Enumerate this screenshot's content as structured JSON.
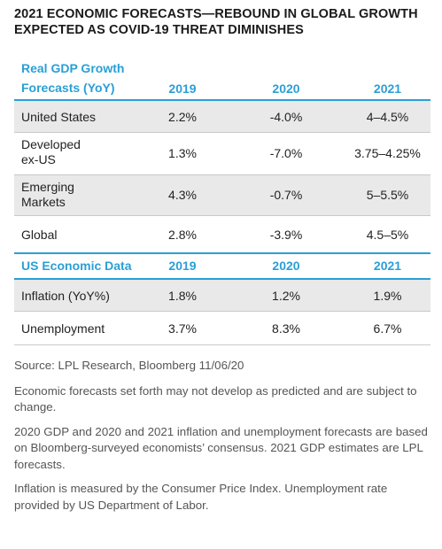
{
  "title": {
    "line1": "2021 ECONOMIC FORECASTS—REBOUND IN GLOBAL GROWTH",
    "line2": "EXPECTED AS COVID-19 THREAT DIMINISHES"
  },
  "gdp_section": {
    "header_line1": "Real GDP Growth",
    "header_line2": "Forecasts (YoY)",
    "years": [
      "2019",
      "2020",
      "2021"
    ],
    "rows": [
      {
        "label_line1": "United States",
        "label_line2": "",
        "values": [
          "2.2%",
          "-4.0%",
          "4–4.5%"
        ]
      },
      {
        "label_line1": "Developed",
        "label_line2": "ex-US",
        "values": [
          "1.3%",
          "-7.0%",
          "3.75–4.25%"
        ]
      },
      {
        "label_line1": "Emerging",
        "label_line2": "Markets",
        "values": [
          "4.3%",
          "-0.7%",
          "5–5.5%"
        ]
      },
      {
        "label_line1": "Global",
        "label_line2": "",
        "values": [
          "2.8%",
          "-3.9%",
          "4.5–5%"
        ]
      }
    ]
  },
  "us_section": {
    "header": "US Economic Data",
    "years": [
      "2019",
      "2020",
      "2021"
    ],
    "rows": [
      {
        "label": "Inflation (YoY%)",
        "values": [
          "1.8%",
          "1.2%",
          "1.9%"
        ]
      },
      {
        "label": "Unemployment",
        "values": [
          "3.7%",
          "8.3%",
          "6.7%"
        ]
      }
    ]
  },
  "notes": {
    "source": "Source: LPL Research, Bloomberg   11/06/20",
    "note1": "Economic forecasts set forth may not develop as predicted and are subject to change.",
    "note2": "2020 GDP and 2020 and 2021 inflation and unemployment forecasts are based on Bloomberg-surveyed economists’ consensus. 2021 GDP estimates are LPL forecasts.",
    "note3": "Inflation is measured by the Consumer Price Index. Unemployment rate provided by US Department of Labor."
  },
  "colors": {
    "accent": "#2a9fd6",
    "row_shade": "#e9e9ea",
    "text": "#222222",
    "note_text": "#555555"
  }
}
